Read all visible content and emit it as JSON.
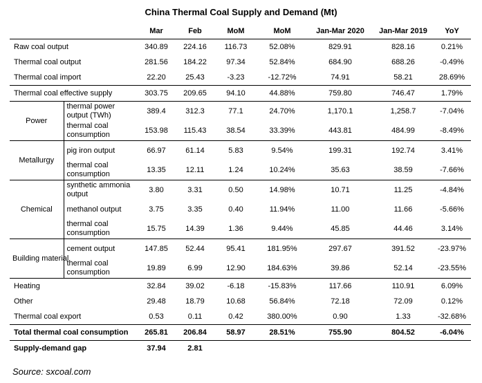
{
  "title": "China Thermal Coal Supply and Demand (Mt)",
  "headers": [
    "Mar",
    "Feb",
    "MoM",
    "MoM",
    "Jan-Mar 2020",
    "Jan-Mar 2019",
    "YoY"
  ],
  "supply": [
    {
      "label": "Raw coal output",
      "v": [
        "340.89",
        "224.16",
        "116.73",
        "52.08%",
        "829.91",
        "828.16",
        "0.21%"
      ]
    },
    {
      "label": "Thermal coal output",
      "v": [
        "281.56",
        "184.22",
        "97.34",
        "52.84%",
        "684.90",
        "688.26",
        "-0.49%"
      ]
    },
    {
      "label": "Thermal coal import",
      "v": [
        "22.20",
        "25.43",
        "-3.23",
        "-12.72%",
        "74.91",
        "58.21",
        "28.69%"
      ]
    },
    {
      "label": "Thermal coal effective supply",
      "v": [
        "303.75",
        "209.65",
        "94.10",
        "44.88%",
        "759.80",
        "746.47",
        "1.79%"
      ]
    }
  ],
  "groups": [
    {
      "name": "Power",
      "rows": [
        {
          "label": "thermal power output (TWh)",
          "v": [
            "389.4",
            "312.3",
            "77.1",
            "24.70%",
            "1,170.1",
            "1,258.7",
            "-7.04%"
          ]
        },
        {
          "label": "thermal coal consumption",
          "v": [
            "153.98",
            "115.43",
            "38.54",
            "33.39%",
            "443.81",
            "484.99",
            "-8.49%"
          ]
        }
      ]
    },
    {
      "name": "Metallurgy",
      "rows": [
        {
          "label": "pig iron output",
          "v": [
            "66.97",
            "61.14",
            "5.83",
            "9.54%",
            "199.31",
            "192.74",
            "3.41%"
          ]
        },
        {
          "label": "thermal coal consumption",
          "v": [
            "13.35",
            "12.11",
            "1.24",
            "10.24%",
            "35.63",
            "38.59",
            "-7.66%"
          ]
        }
      ]
    },
    {
      "name": "Chemical",
      "rows": [
        {
          "label": "synthetic ammonia output",
          "v": [
            "3.80",
            "3.31",
            "0.50",
            "14.98%",
            "10.71",
            "11.25",
            "-4.84%"
          ]
        },
        {
          "label": "methanol output",
          "v": [
            "3.75",
            "3.35",
            "0.40",
            "11.94%",
            "11.00",
            "11.66",
            "-5.66%"
          ]
        },
        {
          "label": "thermal coal consumption",
          "v": [
            "15.75",
            "14.39",
            "1.36",
            "9.44%",
            "45.85",
            "44.46",
            "3.14%"
          ]
        }
      ]
    },
    {
      "name": "Building material",
      "rows": [
        {
          "label": "cement output",
          "v": [
            "147.85",
            "52.44",
            "95.41",
            "181.95%",
            "297.67",
            "391.52",
            "-23.97%"
          ]
        },
        {
          "label": "thermal coal consumption",
          "v": [
            "19.89",
            "6.99",
            "12.90",
            "184.63%",
            "39.86",
            "52.14",
            "-23.55%"
          ]
        }
      ]
    }
  ],
  "other_rows": [
    {
      "label": "Heating",
      "v": [
        "32.84",
        "39.02",
        "-6.18",
        "-15.83%",
        "117.66",
        "110.91",
        "6.09%"
      ]
    },
    {
      "label": "Other",
      "v": [
        "29.48",
        "18.79",
        "10.68",
        "56.84%",
        "72.18",
        "72.09",
        "0.12%"
      ]
    },
    {
      "label": "Thermal coal export",
      "v": [
        "0.53",
        "0.11",
        "0.42",
        "380.00%",
        "0.90",
        "1.33",
        "-32.68%"
      ]
    }
  ],
  "total": {
    "label": "Total thermal coal consumption",
    "v": [
      "265.81",
      "206.84",
      "58.97",
      "28.51%",
      "755.90",
      "804.52",
      "-6.04%"
    ]
  },
  "gap": {
    "label": "Supply-demand gap",
    "v": [
      "37.94",
      "2.81",
      "",
      "",
      "",
      "",
      ""
    ]
  },
  "source": "Source: sxcoal.com"
}
